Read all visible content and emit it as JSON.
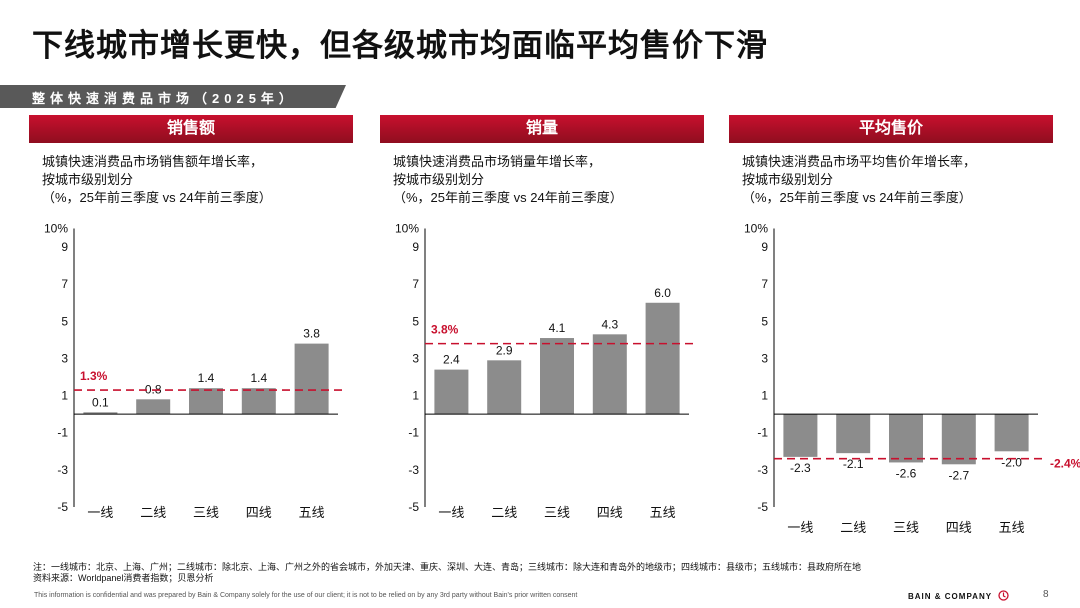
{
  "title": "下线城市增长更快，但各级城市均面临平均售价下滑",
  "section_banner": "整体快速消费品市场（2025年）",
  "panels": [
    {
      "header": "销售额",
      "subtitle_line1": "城镇快速消费品市场销售额年增长率，",
      "subtitle_line2": "按城市级别划分",
      "subtitle_line3": "（%，25年前三季度 vs 24年前三季度）"
    },
    {
      "header": "销量",
      "subtitle_line1": "城镇快速消费品市场销量年增长率，",
      "subtitle_line2": "按城市级别划分",
      "subtitle_line3": "（%，25年前三季度 vs 24年前三季度）"
    },
    {
      "header": "平均售价",
      "subtitle_line1": "城镇快速消费品市场平均售价年增长率，",
      "subtitle_line2": "按城市级别划分",
      "subtitle_line3": "（%，25年前三季度 vs 24年前三季度）"
    }
  ],
  "chart_data": [
    {
      "type": "bar",
      "title": "销售额",
      "categories": [
        "一线",
        "二线",
        "三线",
        "四线",
        "五线"
      ],
      "values": [
        0.1,
        0.8,
        1.4,
        1.4,
        3.8
      ],
      "labels": [
        "0.1",
        "0.8",
        "1.4",
        "1.4",
        "3.8"
      ],
      "average": 1.3,
      "average_label": "1.3%",
      "ylim": [
        -5,
        10
      ],
      "yticks": [
        10,
        9,
        7,
        5,
        3,
        1,
        -1,
        -3,
        -5
      ],
      "ytick_labels": [
        "10%",
        "9",
        "7",
        "5",
        "3",
        "1",
        "-1",
        "-3",
        "-5"
      ]
    },
    {
      "type": "bar",
      "title": "销量",
      "categories": [
        "一线",
        "二线",
        "三线",
        "四线",
        "五线"
      ],
      "values": [
        2.4,
        2.9,
        4.1,
        4.3,
        6.0
      ],
      "labels": [
        "2.4",
        "2.9",
        "4.1",
        "4.3",
        "6.0"
      ],
      "average": 3.8,
      "average_label": "3.8%",
      "ylim": [
        -5,
        10
      ],
      "yticks": [
        10,
        9,
        7,
        5,
        3,
        1,
        -1,
        -3,
        -5
      ],
      "ytick_labels": [
        "10%",
        "9",
        "7",
        "5",
        "3",
        "1",
        "-1",
        "-3",
        "-5"
      ]
    },
    {
      "type": "bar",
      "title": "平均售价",
      "categories": [
        "一线",
        "二线",
        "三线",
        "四线",
        "五线"
      ],
      "values": [
        -2.3,
        -2.1,
        -2.6,
        -2.7,
        -2.0
      ],
      "labels": [
        "-2.3",
        "-2.1",
        "-2.6",
        "-2.7",
        "-2.0"
      ],
      "average": -2.4,
      "average_label": "-2.4%",
      "ylim": [
        -5,
        10
      ],
      "yticks": [
        10,
        9,
        7,
        5,
        3,
        1,
        -1,
        -3,
        -5
      ],
      "ytick_labels": [
        "10%",
        "9",
        "7",
        "5",
        "3",
        "1",
        "-1",
        "-3",
        "-5"
      ]
    }
  ],
  "colors": {
    "bar": "#8c8c8c",
    "accent": "#c8102e",
    "header_dark": "#8f0d1f",
    "banner": "#595959"
  },
  "notes_line1": "注：一线城市：北京、上海、广州；二线城市：除北京、上海、广州之外的省会城市，外加天津、重庆、深圳、大连、青岛；三线城市：除大连和青岛外的地级市；四线城市：县级市；五线城市：县政府所在地",
  "notes_line2": "资料来源：Worldpanel消费者指数；贝恩分析",
  "disclaimer": "This information is confidential and was prepared by Bain & Company solely for the use of our client; it is not to be relied on by any 3rd party without Bain's prior written consent",
  "brand": "BAIN & COMPANY",
  "brand_icon": "bain-logo-icon",
  "page_number": "8"
}
